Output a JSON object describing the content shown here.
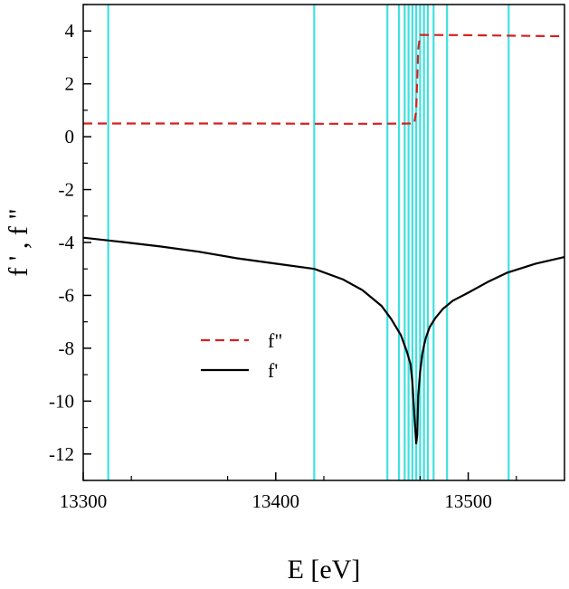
{
  "chart_data": {
    "type": "line",
    "xlabel": "E [eV]",
    "ylabel": "f ' , f \"",
    "xlim": [
      13300,
      13550
    ],
    "ylim": [
      -13,
      5
    ],
    "x_ticks": [
      13300,
      13400,
      13500
    ],
    "x_tick_labels": [
      "13300",
      "13400",
      "13500"
    ],
    "y_ticks": [
      4,
      2,
      0,
      -2,
      -4,
      -6,
      -8,
      -10,
      -12
    ],
    "y_tick_labels": [
      "4",
      "2",
      "0",
      "-2",
      "-4",
      "-6",
      "-8",
      "-10",
      "-12"
    ],
    "grid": false,
    "legend_position": "center",
    "vertical_lines": {
      "color": "#40e0e0",
      "x": [
        13313,
        13420,
        13458,
        13464,
        13467,
        13469,
        13471,
        13473,
        13475,
        13477,
        13479,
        13482,
        13489,
        13521
      ]
    },
    "series": [
      {
        "name": "f\"",
        "style": "dashed",
        "color": "#d62020",
        "x": [
          13300,
          13330,
          13360,
          13390,
          13420,
          13450,
          13472,
          13473,
          13474,
          13475,
          13500,
          13525,
          13550
        ],
        "y": [
          0.5,
          0.5,
          0.5,
          0.5,
          0.49,
          0.49,
          0.5,
          1.0,
          3.3,
          3.85,
          3.84,
          3.82,
          3.8
        ]
      },
      {
        "name": "f'",
        "style": "solid",
        "color": "#000000",
        "x": [
          13300,
          13320,
          13340,
          13360,
          13380,
          13400,
          13420,
          13435,
          13445,
          13455,
          13460,
          13465,
          13468,
          13470,
          13471,
          13472,
          13473,
          13473.5,
          13474,
          13475,
          13476,
          13477,
          13478,
          13480,
          13483,
          13487,
          13492,
          13500,
          13510,
          13520,
          13535,
          13550
        ],
        "y": [
          -3.82,
          -3.98,
          -4.15,
          -4.35,
          -4.6,
          -4.8,
          -5.0,
          -5.4,
          -5.8,
          -6.4,
          -6.9,
          -7.5,
          -8.1,
          -8.6,
          -9.3,
          -10.5,
          -11.6,
          -11.3,
          -9.8,
          -8.9,
          -8.3,
          -7.9,
          -7.6,
          -7.2,
          -6.85,
          -6.5,
          -6.2,
          -5.9,
          -5.5,
          -5.15,
          -4.8,
          -4.55
        ]
      }
    ]
  }
}
